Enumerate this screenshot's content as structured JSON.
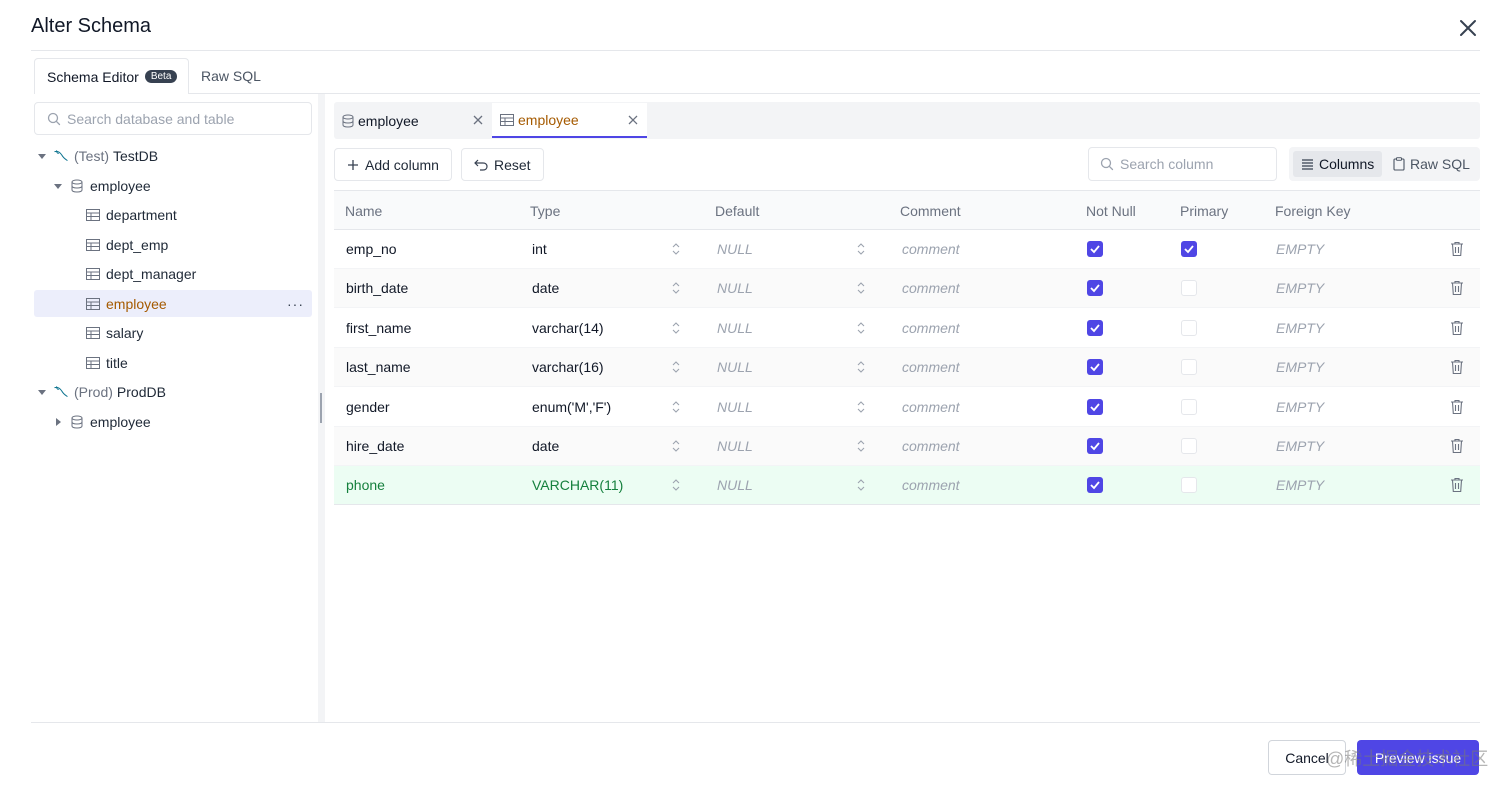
{
  "dialog": {
    "title": "Alter Schema"
  },
  "main_tabs": {
    "schema_editor": "Schema Editor",
    "beta_badge": "Beta",
    "raw_sql": "Raw SQL"
  },
  "sidebar": {
    "search_placeholder": "Search database and table",
    "tree": {
      "testdb": {
        "env": "(Test)",
        "name": "TestDB"
      },
      "test_schema": "employee",
      "tables": [
        "department",
        "dept_emp",
        "dept_manager",
        "employee",
        "salary",
        "title"
      ],
      "selected_table": "employee",
      "more": "···",
      "proddb": {
        "env": "(Prod)",
        "name": "ProdDB"
      },
      "prod_schema": "employee"
    }
  },
  "editor": {
    "tabs": [
      "employee",
      "employee"
    ],
    "toolbar": {
      "add_column": "Add column",
      "reset": "Reset",
      "search_placeholder": "Search column",
      "view_columns": "Columns",
      "view_raw_sql": "Raw SQL"
    },
    "columns": [
      "Name",
      "Type",
      "Default",
      "Comment",
      "Not Null",
      "Primary",
      "Foreign Key"
    ],
    "rows": [
      {
        "name": "emp_no",
        "type": "int",
        "default": "NULL",
        "comment": "comment",
        "not_null": true,
        "primary": true,
        "fk": "EMPTY"
      },
      {
        "name": "birth_date",
        "type": "date",
        "default": "NULL",
        "comment": "comment",
        "not_null": true,
        "primary": false,
        "fk": "EMPTY"
      },
      {
        "name": "first_name",
        "type": "varchar(14)",
        "default": "NULL",
        "comment": "comment",
        "not_null": true,
        "primary": false,
        "fk": "EMPTY"
      },
      {
        "name": "last_name",
        "type": "varchar(16)",
        "default": "NULL",
        "comment": "comment",
        "not_null": true,
        "primary": false,
        "fk": "EMPTY"
      },
      {
        "name": "gender",
        "type": "enum('M','F')",
        "default": "NULL",
        "comment": "comment",
        "not_null": true,
        "primary": false,
        "fk": "EMPTY"
      },
      {
        "name": "hire_date",
        "type": "date",
        "default": "NULL",
        "comment": "comment",
        "not_null": true,
        "primary": false,
        "fk": "EMPTY"
      },
      {
        "name": "phone",
        "type": "VARCHAR(11)",
        "default": "NULL",
        "comment": "comment",
        "not_null": true,
        "primary": false,
        "fk": "EMPTY"
      }
    ]
  },
  "footer": {
    "cancel": "Cancel",
    "preview_issue": "Preview issue",
    "watermark": "@稀土掘金技术社区"
  },
  "colors": {
    "accent": "#4f46e5",
    "selected_text": "#a55a00",
    "new_row_bg": "#ecfdf3",
    "new_row_text": "#15803d"
  }
}
